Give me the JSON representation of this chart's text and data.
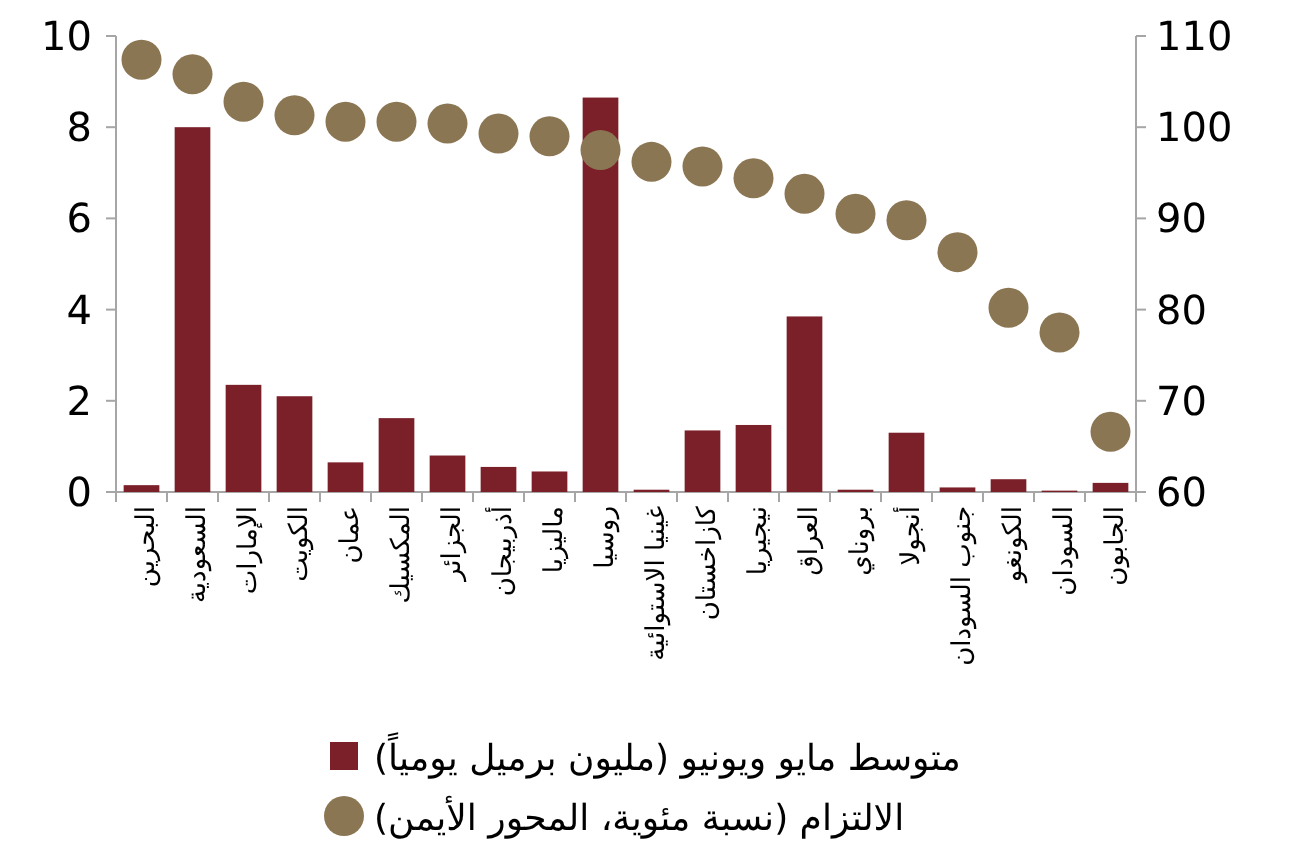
{
  "chart_data": {
    "type": "bar",
    "categories": [
      "البحرين",
      "السعودية",
      "الإمارات",
      "الكويت",
      "عمان",
      "المكسيك",
      "الجزائر",
      "أذربيجان",
      "ماليزيا",
      "روسيا",
      "غينيا الاستوائية",
      "كازاخستان",
      "نيجيريا",
      "العراق",
      "بروناي",
      "أنجولا",
      "جنوب السودان",
      "الكونغو",
      "السودان",
      "الجابون"
    ],
    "series": [
      {
        "name": "متوسط مايو ويونيو (مليون برميل يومياً)",
        "color": "#7b1f28",
        "values": [
          0.15,
          8.0,
          2.35,
          2.1,
          0.65,
          1.62,
          0.8,
          0.55,
          0.45,
          8.65,
          0.05,
          1.35,
          1.47,
          3.85,
          0.05,
          1.3,
          0.1,
          0.28,
          0.03,
          0.2
        ]
      },
      {
        "name": "الالتزام (نسبة مئوية، المحور الأيمن)",
        "type": "scatter",
        "axis": "y2",
        "marker": "circle",
        "color": "#8b7653",
        "values": [
          107.4,
          105.8,
          102.8,
          101.3,
          100.6,
          100.6,
          100.4,
          99.3,
          99.0,
          97.5,
          96.2,
          95.7,
          94.4,
          92.7,
          90.5,
          89.8,
          86.3,
          80.2,
          77.5,
          66.6
        ]
      }
    ],
    "ylim": [
      0,
      10
    ],
    "yticks": [
      0,
      2,
      4,
      6,
      8,
      10
    ],
    "y2lim": [
      60,
      110
    ],
    "y2ticks": [
      60,
      70,
      80,
      90,
      100,
      110
    ],
    "legend": "bottom"
  }
}
